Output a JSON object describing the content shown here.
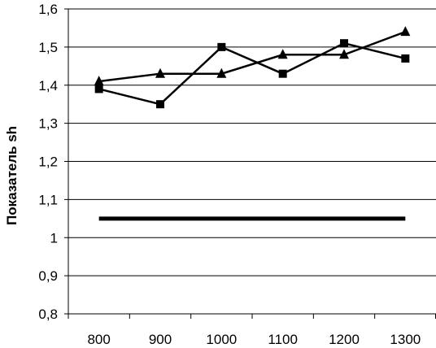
{
  "chart_data": {
    "type": "line",
    "title": "",
    "xlabel": "",
    "ylabel": "Показатель sh",
    "categories": [
      "800",
      "900",
      "1000",
      "1100",
      "1200",
      "1300"
    ],
    "y_tick_labels": [
      "0,8",
      "0,9",
      "1",
      "1,1",
      "1,2",
      "1,3",
      "1,4",
      "1,5",
      "1,6"
    ],
    "ylim": [
      0.8,
      1.6
    ],
    "grid": "horizontal",
    "legend": "none",
    "series": [
      {
        "marker": "square",
        "values": [
          1.39,
          1.35,
          1.5,
          1.43,
          1.51,
          1.47
        ]
      },
      {
        "marker": "triangle",
        "values": [
          1.41,
          1.43,
          1.43,
          1.48,
          1.48,
          1.54
        ]
      },
      {
        "marker": "none",
        "line_weight": "thick",
        "values": [
          1.05,
          1.05,
          1.05,
          1.05,
          1.05,
          1.05
        ]
      }
    ],
    "colors": {
      "line": "#000000",
      "grid": "#000000",
      "background": "#ffffff"
    }
  }
}
